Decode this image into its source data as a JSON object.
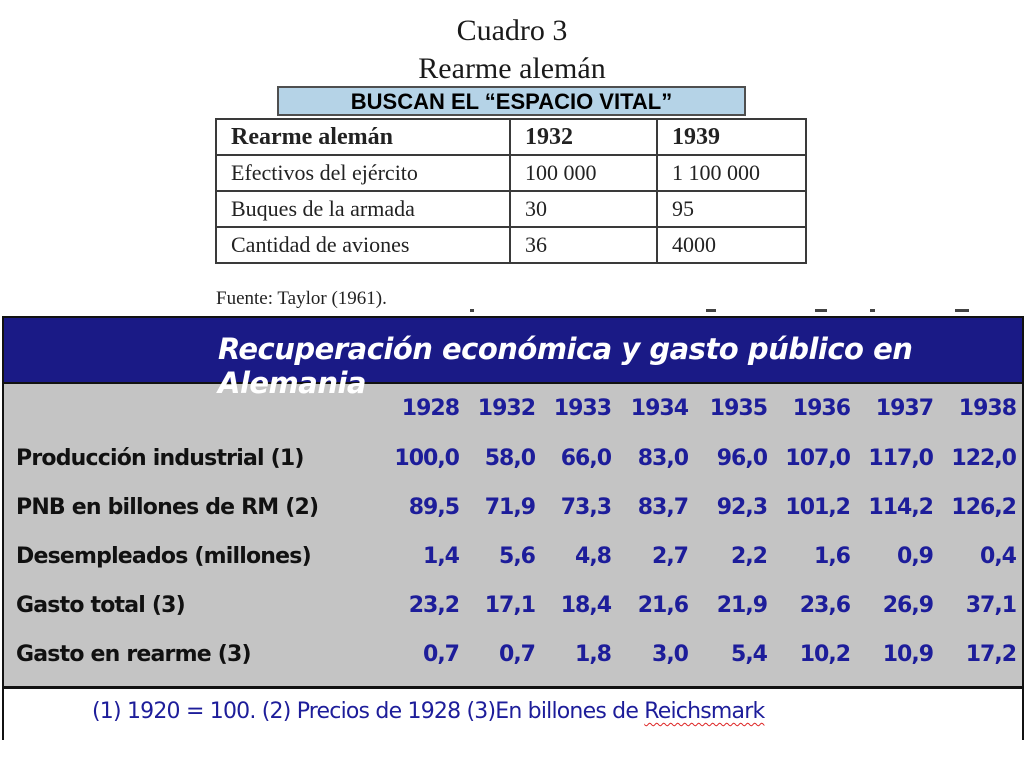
{
  "cuadro": {
    "title": "Cuadro 3",
    "subtitle": "Rearme alemán",
    "banner": "BUSCAN EL “ESPACIO VITAL”",
    "headers": [
      "Rearme alemán",
      "1932",
      "1939"
    ],
    "rows": [
      [
        "Efectivos del ejército",
        "100 000",
        "1 100 000"
      ],
      [
        "Buques de la armada",
        "30",
        "95"
      ],
      [
        "Cantidad de aviones",
        "36",
        "4000"
      ]
    ],
    "source": "Fuente: Taylor (1961)."
  },
  "econ": {
    "title": "Recuperación económica y gasto público en Alemania",
    "years": [
      "1928",
      "1932",
      "1933",
      "1934",
      "1935",
      "1936",
      "1937",
      "1938"
    ],
    "rows": [
      {
        "label": "Producción industrial (1)",
        "values": [
          "100,0",
          "58,0",
          "66,0",
          "83,0",
          "96,0",
          "107,0",
          "117,0",
          "122,0"
        ]
      },
      {
        "label": "PNB en billones de RM (2)",
        "values": [
          "89,5",
          "71,9",
          "73,3",
          "83,7",
          "92,3",
          "101,2",
          "114,2",
          "126,2"
        ]
      },
      {
        "label": "Desempleados (millones)",
        "values": [
          "1,4",
          "5,6",
          "4,8",
          "2,7",
          "2,2",
          "1,6",
          "0,9",
          "0,4"
        ]
      },
      {
        "label": "Gasto total (3)",
        "values": [
          "23,2",
          "17,1",
          "18,4",
          "21,6",
          "21,9",
          "23,6",
          "26,9",
          "37,1"
        ]
      },
      {
        "label": "Gasto en rearme (3)",
        "values": [
          "0,7",
          "0,7",
          "1,8",
          "3,0",
          "5,4",
          "10,2",
          "10,9",
          "17,2"
        ]
      }
    ],
    "footnote_prefix": "(1)  1920 = 100. (2) Precios de 1928 (3)En billones de ",
    "footnote_word": "Reichsmark"
  }
}
